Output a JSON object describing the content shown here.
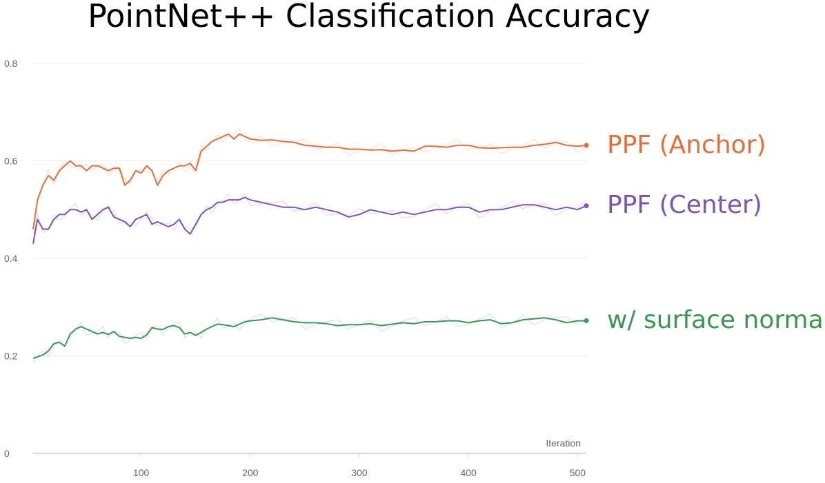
{
  "chart_data": {
    "type": "line",
    "title": "PointNet++ Classification Accuracy",
    "xlabel": "Iteration",
    "ylabel": "",
    "xlim": [
      1,
      508
    ],
    "ylim": [
      0,
      0.8
    ],
    "x_ticks": [
      100,
      200,
      300,
      400,
      500
    ],
    "y_ticks": [
      0,
      0.2,
      0.4,
      0.6,
      0.8
    ],
    "grid": true,
    "legend": "inline labels at right end of each series",
    "series": [
      {
        "name": "PPF (Anchor)",
        "color": "#E07038",
        "x": [
          1,
          5,
          10,
          15,
          20,
          25,
          30,
          35,
          40,
          45,
          50,
          55,
          60,
          65,
          70,
          75,
          80,
          85,
          90,
          95,
          100,
          105,
          110,
          115,
          120,
          125,
          130,
          135,
          140,
          145,
          150,
          155,
          160,
          165,
          170,
          175,
          180,
          185,
          190,
          195,
          200,
          210,
          220,
          230,
          240,
          250,
          260,
          270,
          280,
          290,
          300,
          310,
          320,
          330,
          340,
          350,
          360,
          370,
          380,
          390,
          400,
          410,
          420,
          430,
          440,
          450,
          460,
          470,
          480,
          490,
          500,
          508
        ],
        "values": [
          0.46,
          0.52,
          0.55,
          0.57,
          0.56,
          0.58,
          0.59,
          0.6,
          0.59,
          0.59,
          0.58,
          0.59,
          0.59,
          0.585,
          0.58,
          0.585,
          0.585,
          0.55,
          0.56,
          0.58,
          0.575,
          0.59,
          0.58,
          0.55,
          0.57,
          0.58,
          0.585,
          0.59,
          0.59,
          0.595,
          0.58,
          0.62,
          0.63,
          0.64,
          0.645,
          0.65,
          0.655,
          0.645,
          0.655,
          0.65,
          0.645,
          0.642,
          0.643,
          0.64,
          0.638,
          0.632,
          0.63,
          0.628,
          0.628,
          0.624,
          0.624,
          0.622,
          0.623,
          0.62,
          0.622,
          0.62,
          0.63,
          0.63,
          0.628,
          0.632,
          0.632,
          0.627,
          0.626,
          0.627,
          0.628,
          0.628,
          0.632,
          0.634,
          0.638,
          0.632,
          0.63,
          0.632
        ]
      },
      {
        "name": "PPF (Center)",
        "color": "#7B55B0",
        "x": [
          1,
          5,
          10,
          15,
          20,
          25,
          30,
          35,
          40,
          45,
          50,
          55,
          60,
          65,
          70,
          75,
          80,
          85,
          90,
          95,
          100,
          105,
          110,
          115,
          120,
          125,
          130,
          135,
          140,
          145,
          150,
          155,
          160,
          165,
          170,
          175,
          180,
          185,
          190,
          195,
          200,
          210,
          220,
          230,
          240,
          250,
          260,
          270,
          280,
          290,
          300,
          310,
          320,
          330,
          340,
          350,
          360,
          370,
          380,
          390,
          400,
          410,
          420,
          430,
          440,
          450,
          460,
          470,
          480,
          490,
          500,
          508
        ],
        "values": [
          0.43,
          0.48,
          0.46,
          0.46,
          0.48,
          0.49,
          0.49,
          0.5,
          0.5,
          0.495,
          0.5,
          0.48,
          0.49,
          0.5,
          0.505,
          0.485,
          0.48,
          0.475,
          0.465,
          0.48,
          0.485,
          0.49,
          0.47,
          0.475,
          0.47,
          0.465,
          0.47,
          0.48,
          0.46,
          0.45,
          0.47,
          0.49,
          0.5,
          0.505,
          0.515,
          0.515,
          0.52,
          0.52,
          0.52,
          0.525,
          0.52,
          0.515,
          0.51,
          0.505,
          0.505,
          0.5,
          0.505,
          0.5,
          0.495,
          0.485,
          0.49,
          0.5,
          0.495,
          0.49,
          0.495,
          0.49,
          0.495,
          0.5,
          0.5,
          0.505,
          0.505,
          0.495,
          0.5,
          0.5,
          0.505,
          0.51,
          0.51,
          0.505,
          0.5,
          0.505,
          0.5,
          0.508
        ]
      },
      {
        "name": "w/ surface normal",
        "color": "#3D9553",
        "x": [
          1,
          5,
          10,
          15,
          20,
          25,
          30,
          35,
          40,
          45,
          50,
          55,
          60,
          65,
          70,
          75,
          80,
          85,
          90,
          95,
          100,
          105,
          110,
          115,
          120,
          125,
          130,
          135,
          140,
          145,
          150,
          155,
          160,
          165,
          170,
          175,
          180,
          185,
          190,
          195,
          200,
          210,
          220,
          230,
          240,
          250,
          260,
          270,
          280,
          290,
          300,
          310,
          320,
          330,
          340,
          350,
          360,
          370,
          380,
          390,
          400,
          410,
          420,
          430,
          440,
          450,
          460,
          470,
          480,
          490,
          500,
          508
        ],
        "values": [
          0.195,
          0.198,
          0.202,
          0.21,
          0.225,
          0.228,
          0.22,
          0.245,
          0.255,
          0.26,
          0.255,
          0.25,
          0.245,
          0.248,
          0.244,
          0.25,
          0.24,
          0.238,
          0.236,
          0.238,
          0.236,
          0.243,
          0.258,
          0.255,
          0.254,
          0.26,
          0.262,
          0.258,
          0.245,
          0.248,
          0.242,
          0.248,
          0.255,
          0.26,
          0.265,
          0.264,
          0.262,
          0.26,
          0.265,
          0.27,
          0.272,
          0.274,
          0.278,
          0.274,
          0.27,
          0.268,
          0.268,
          0.266,
          0.262,
          0.264,
          0.264,
          0.266,
          0.262,
          0.265,
          0.268,
          0.266,
          0.27,
          0.27,
          0.272,
          0.272,
          0.268,
          0.272,
          0.274,
          0.266,
          0.268,
          0.274,
          0.276,
          0.278,
          0.274,
          0.268,
          0.272,
          0.272
        ]
      }
    ]
  }
}
